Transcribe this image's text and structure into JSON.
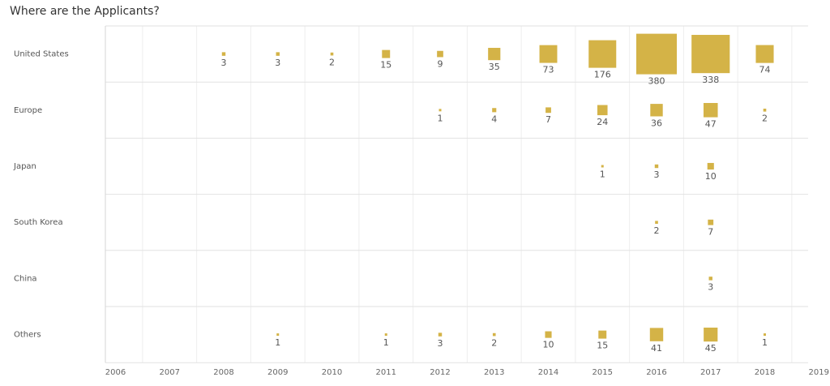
{
  "title": "Where are the Applicants?",
  "chart_data": {
    "type": "scatter",
    "title": "Where are the Applicants?",
    "marker": "square",
    "marker_color": "#D4B347",
    "x_ticks": [
      "2006",
      "2007",
      "2008",
      "2009",
      "2010",
      "2011",
      "2012",
      "2013",
      "2014",
      "2015",
      "2016",
      "2017",
      "2018",
      "2019"
    ],
    "rows": [
      {
        "name": "United States",
        "points": [
          {
            "x": 2008,
            "value": 3
          },
          {
            "x": 2009,
            "value": 3
          },
          {
            "x": 2010,
            "value": 2
          },
          {
            "x": 2011,
            "value": 15
          },
          {
            "x": 2012,
            "value": 9
          },
          {
            "x": 2013,
            "value": 35
          },
          {
            "x": 2014,
            "value": 73
          },
          {
            "x": 2015,
            "value": 176
          },
          {
            "x": 2016,
            "value": 380
          },
          {
            "x": 2017,
            "value": 338
          },
          {
            "x": 2018,
            "value": 74
          }
        ]
      },
      {
        "name": "Europe",
        "points": [
          {
            "x": 2012,
            "value": 1
          },
          {
            "x": 2013,
            "value": 4
          },
          {
            "x": 2014,
            "value": 7
          },
          {
            "x": 2015,
            "value": 24
          },
          {
            "x": 2016,
            "value": 36
          },
          {
            "x": 2017,
            "value": 47
          },
          {
            "x": 2018,
            "value": 2
          }
        ]
      },
      {
        "name": "Japan",
        "points": [
          {
            "x": 2015,
            "value": 1
          },
          {
            "x": 2016,
            "value": 3
          },
          {
            "x": 2017,
            "value": 10
          }
        ]
      },
      {
        "name": "South Korea",
        "points": [
          {
            "x": 2016,
            "value": 2
          },
          {
            "x": 2017,
            "value": 7
          }
        ]
      },
      {
        "name": "China",
        "points": [
          {
            "x": 2017,
            "value": 3
          }
        ]
      },
      {
        "name": "Others",
        "points": [
          {
            "x": 2009,
            "value": 1
          },
          {
            "x": 2011,
            "value": 1
          },
          {
            "x": 2012,
            "value": 3
          },
          {
            "x": 2013,
            "value": 2
          },
          {
            "x": 2014,
            "value": 10
          },
          {
            "x": 2015,
            "value": 15
          },
          {
            "x": 2016,
            "value": 41
          },
          {
            "x": 2017,
            "value": 45
          },
          {
            "x": 2018,
            "value": 1
          }
        ]
      }
    ]
  }
}
